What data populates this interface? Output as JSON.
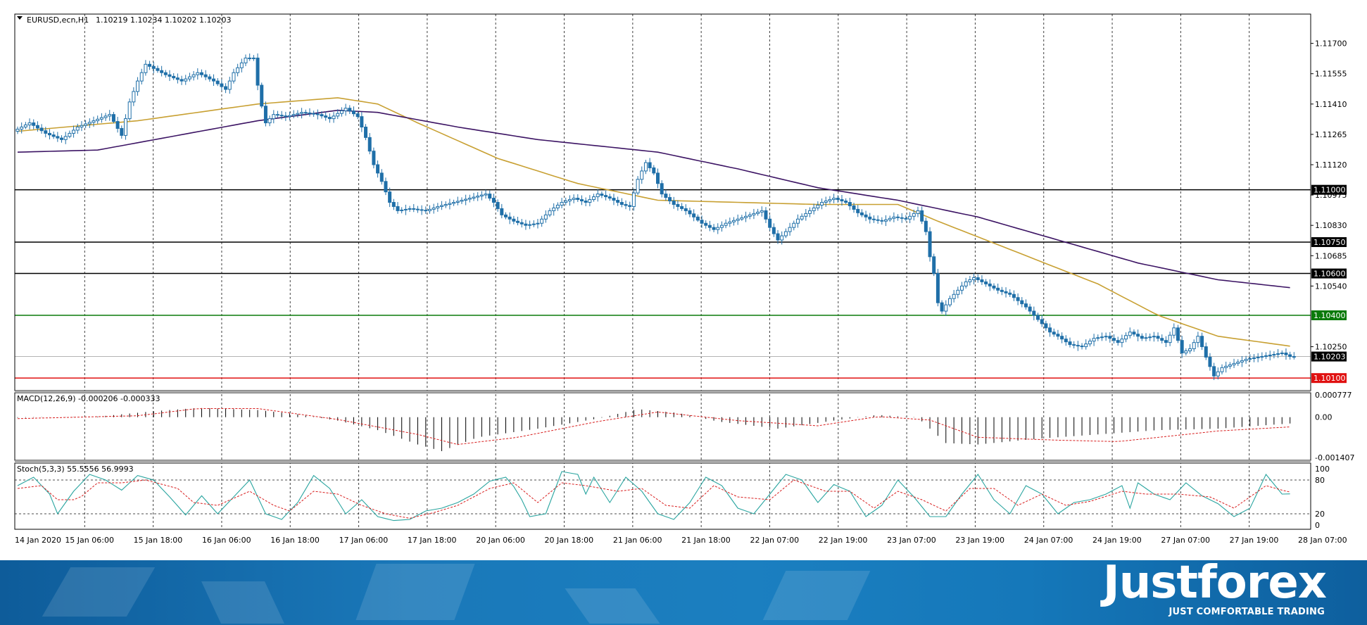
{
  "chart_data": {
    "type": "candlestick",
    "symbol_header": "EURUSD,ecn,H1",
    "ohlc_header": "1.10219 1.10234 1.10202 1.10203",
    "price_axis": {
      "range": [
        1.1004,
        1.1184
      ],
      "ticks": [
        "1.11700",
        "1.11555",
        "1.11410",
        "1.11265",
        "1.11120",
        "1.10975",
        "1.10830",
        "1.10685",
        "1.10540",
        "1.10250"
      ]
    },
    "time_labels": [
      "14 Jan 2020",
      "15 Jan 06:00",
      "15 Jan 18:00",
      "16 Jan 06:00",
      "16 Jan 18:00",
      "17 Jan 06:00",
      "17 Jan 18:00",
      "20 Jan 06:00",
      "20 Jan 18:00",
      "21 Jan 06:00",
      "21 Jan 18:00",
      "22 Jan 07:00",
      "22 Jan 19:00",
      "23 Jan 07:00",
      "23 Jan 19:00",
      "24 Jan 07:00",
      "24 Jan 19:00",
      "27 Jan 07:00",
      "27 Jan 19:00",
      "28 Jan 07:00"
    ],
    "levels": [
      {
        "price": 1.11,
        "label": "1.11000",
        "color": "#000000"
      },
      {
        "price": 1.1075,
        "label": "1.10750",
        "color": "#000000"
      },
      {
        "price": 1.106,
        "label": "1.10600",
        "color": "#000000"
      },
      {
        "price": 1.104,
        "label": "1.10400",
        "color": "#0a7a0a"
      },
      {
        "price": 1.10203,
        "label": "1.10203",
        "color": "#000000"
      },
      {
        "price": 1.101,
        "label": "1.10100",
        "color": "#e01010"
      }
    ],
    "price_path": [
      [
        0,
        1.1128
      ],
      [
        4,
        1.1132
      ],
      [
        8,
        1.1127
      ],
      [
        12,
        1.1124
      ],
      [
        16,
        1.113
      ],
      [
        20,
        1.1133
      ],
      [
        24,
        1.1136
      ],
      [
        27,
        1.1126
      ],
      [
        29,
        1.1142
      ],
      [
        31,
        1.1152
      ],
      [
        33,
        1.116
      ],
      [
        35,
        1.1158
      ],
      [
        38,
        1.1155
      ],
      [
        42,
        1.1152
      ],
      [
        46,
        1.1156
      ],
      [
        50,
        1.1152
      ],
      [
        53,
        1.1148
      ],
      [
        55,
        1.1156
      ],
      [
        58,
        1.1163
      ],
      [
        60,
        1.1163
      ],
      [
        61,
        1.115
      ],
      [
        62,
        1.114
      ],
      [
        63,
        1.1132
      ],
      [
        65,
        1.1136
      ],
      [
        68,
        1.1135
      ],
      [
        72,
        1.1137
      ],
      [
        76,
        1.1136
      ],
      [
        79,
        1.1134
      ],
      [
        83,
        1.1139
      ],
      [
        86,
        1.1135
      ],
      [
        88,
        1.1125
      ],
      [
        90,
        1.1112
      ],
      [
        92,
        1.1104
      ],
      [
        94,
        1.1094
      ],
      [
        96,
        1.109
      ],
      [
        99,
        1.1091
      ],
      [
        103,
        1.109
      ],
      [
        106,
        1.1092
      ],
      [
        110,
        1.1094
      ],
      [
        114,
        1.1096
      ],
      [
        118,
        1.1098
      ],
      [
        120,
        1.1094
      ],
      [
        122,
        1.1088
      ],
      [
        125,
        1.1085
      ],
      [
        128,
        1.1083
      ],
      [
        131,
        1.1084
      ],
      [
        134,
        1.109
      ],
      [
        137,
        1.1094
      ],
      [
        140,
        1.1096
      ],
      [
        143,
        1.1094
      ],
      [
        146,
        1.1098
      ],
      [
        149,
        1.1096
      ],
      [
        152,
        1.1093
      ],
      [
        154,
        1.1092
      ],
      [
        156,
        1.1105
      ],
      [
        158,
        1.1113
      ],
      [
        160,
        1.1108
      ],
      [
        162,
        1.1098
      ],
      [
        165,
        1.1093
      ],
      [
        168,
        1.109
      ],
      [
        170,
        1.1087
      ],
      [
        172,
        1.1084
      ],
      [
        175,
        1.1081
      ],
      [
        178,
        1.1084
      ],
      [
        181,
        1.1086
      ],
      [
        184,
        1.1088
      ],
      [
        187,
        1.109
      ],
      [
        189,
        1.1082
      ],
      [
        191,
        1.1076
      ],
      [
        193,
        1.108
      ],
      [
        196,
        1.1086
      ],
      [
        199,
        1.109
      ],
      [
        202,
        1.1094
      ],
      [
        205,
        1.1096
      ],
      [
        208,
        1.1094
      ],
      [
        211,
        1.1089
      ],
      [
        214,
        1.1086
      ],
      [
        217,
        1.1085
      ],
      [
        220,
        1.1087
      ],
      [
        223,
        1.1086
      ],
      [
        226,
        1.109
      ],
      [
        228,
        1.108
      ],
      [
        229,
        1.1068
      ],
      [
        230,
        1.106
      ],
      [
        231,
        1.1046
      ],
      [
        232,
        1.1042
      ],
      [
        234,
        1.1048
      ],
      [
        236,
        1.1052
      ],
      [
        238,
        1.1056
      ],
      [
        240,
        1.1058
      ],
      [
        243,
        1.1055
      ],
      [
        246,
        1.1052
      ],
      [
        249,
        1.105
      ],
      [
        251,
        1.1047
      ],
      [
        253,
        1.1044
      ],
      [
        255,
        1.104
      ],
      [
        257,
        1.1036
      ],
      [
        259,
        1.1032
      ],
      [
        261,
        1.103
      ],
      [
        264,
        1.1026
      ],
      [
        267,
        1.1025
      ],
      [
        270,
        1.1029
      ],
      [
        273,
        1.103
      ],
      [
        276,
        1.1027
      ],
      [
        279,
        1.1032
      ],
      [
        282,
        1.1029
      ],
      [
        285,
        1.103
      ],
      [
        288,
        1.1027
      ],
      [
        290,
        1.1034
      ],
      [
        292,
        1.1022
      ],
      [
        294,
        1.1024
      ],
      [
        296,
        1.103
      ],
      [
        298,
        1.102
      ],
      [
        300,
        1.1011
      ],
      [
        302,
        1.1015
      ],
      [
        305,
        1.1017
      ],
      [
        308,
        1.1019
      ],
      [
        311,
        1.102
      ],
      [
        314,
        1.1021
      ],
      [
        317,
        1.1022
      ],
      [
        319,
        1.10203
      ]
    ],
    "moving_averages": [
      {
        "color": "#c8a032",
        "points": [
          [
            0,
            1.1128
          ],
          [
            30,
            1.1133
          ],
          [
            60,
            1.1141
          ],
          [
            80,
            1.1144
          ],
          [
            90,
            1.1141
          ],
          [
            100,
            1.1132
          ],
          [
            120,
            1.1115
          ],
          [
            140,
            1.1103
          ],
          [
            160,
            1.1095
          ],
          [
            200,
            1.1093
          ],
          [
            220,
            1.1093
          ],
          [
            230,
            1.1085
          ],
          [
            250,
            1.107
          ],
          [
            270,
            1.1055
          ],
          [
            285,
            1.104
          ],
          [
            300,
            1.103
          ],
          [
            319,
            1.1025
          ]
        ]
      },
      {
        "color": "#3c1464",
        "points": [
          [
            0,
            1.1118
          ],
          [
            20,
            1.1119
          ],
          [
            40,
            1.1126
          ],
          [
            60,
            1.1133
          ],
          [
            80,
            1.1138
          ],
          [
            90,
            1.1137
          ],
          [
            110,
            1.113
          ],
          [
            130,
            1.1124
          ],
          [
            160,
            1.1118
          ],
          [
            180,
            1.111
          ],
          [
            200,
            1.1101
          ],
          [
            220,
            1.1095
          ],
          [
            240,
            1.1087
          ],
          [
            260,
            1.1076
          ],
          [
            280,
            1.1065
          ],
          [
            300,
            1.1057
          ],
          [
            319,
            1.1053
          ]
        ]
      }
    ],
    "macd": {
      "label": "MACD(12,26,9) -0.000206 -0.000333",
      "ticks": [
        "0.000777",
        "0.00",
        "-0.001407"
      ],
      "range": [
        -0.0015,
        0.00085
      ],
      "histogram": [
        [
          0,
          -2e-05
        ],
        [
          20,
          2e-05
        ],
        [
          35,
          0.00022
        ],
        [
          45,
          0.00032
        ],
        [
          60,
          0.00025
        ],
        [
          70,
          0.0001
        ],
        [
          80,
          -0.00012
        ],
        [
          90,
          -0.00045
        ],
        [
          100,
          -0.00095
        ],
        [
          106,
          -0.00118
        ],
        [
          115,
          -0.0007
        ],
        [
          130,
          -0.0004
        ],
        [
          145,
          -5e-05
        ],
        [
          155,
          0.00028
        ],
        [
          165,
          0.00015
        ],
        [
          175,
          -0.00015
        ],
        [
          190,
          -0.0004
        ],
        [
          205,
          -0.0001
        ],
        [
          215,
          8e-05
        ],
        [
          225,
          -2e-05
        ],
        [
          232,
          -0.0009
        ],
        [
          240,
          -0.00095
        ],
        [
          255,
          -0.00075
        ],
        [
          270,
          -0.0006
        ],
        [
          285,
          -0.00045
        ],
        [
          300,
          -0.0004
        ],
        [
          319,
          -0.00021
        ]
      ],
      "signal": [
        [
          0,
          -5e-05
        ],
        [
          30,
          5e-05
        ],
        [
          45,
          0.0003
        ],
        [
          60,
          0.0003
        ],
        [
          80,
          -8e-05
        ],
        [
          100,
          -0.0006
        ],
        [
          110,
          -0.00095
        ],
        [
          125,
          -0.0007
        ],
        [
          145,
          -0.00015
        ],
        [
          160,
          0.00018
        ],
        [
          180,
          -0.00012
        ],
        [
          200,
          -0.0003
        ],
        [
          215,
          2e-05
        ],
        [
          228,
          -0.0001
        ],
        [
          240,
          -0.0007
        ],
        [
          260,
          -0.0008
        ],
        [
          275,
          -0.00085
        ],
        [
          300,
          -0.00048
        ],
        [
          319,
          -0.00033
        ]
      ]
    },
    "stochastic": {
      "label": "Stoch(5,3,3) 55.5556 56.9993",
      "ticks": [
        "100",
        "80",
        "20",
        "0"
      ],
      "range": [
        0,
        100
      ],
      "main": [
        [
          0,
          70
        ],
        [
          4,
          85
        ],
        [
          8,
          55
        ],
        [
          10,
          20
        ],
        [
          14,
          60
        ],
        [
          18,
          90
        ],
        [
          22,
          80
        ],
        [
          26,
          62
        ],
        [
          30,
          88
        ],
        [
          34,
          80
        ],
        [
          38,
          50
        ],
        [
          42,
          18
        ],
        [
          46,
          52
        ],
        [
          50,
          20
        ],
        [
          54,
          50
        ],
        [
          58,
          80
        ],
        [
          62,
          20
        ],
        [
          66,
          10
        ],
        [
          70,
          40
        ],
        [
          74,
          88
        ],
        [
          78,
          65
        ],
        [
          82,
          20
        ],
        [
          86,
          45
        ],
        [
          90,
          15
        ],
        [
          94,
          8
        ],
        [
          98,
          10
        ],
        [
          102,
          25
        ],
        [
          106,
          30
        ],
        [
          110,
          40
        ],
        [
          114,
          55
        ],
        [
          118,
          78
        ],
        [
          122,
          85
        ],
        [
          125,
          60
        ],
        [
          128,
          15
        ],
        [
          132,
          20
        ],
        [
          136,
          95
        ],
        [
          140,
          90
        ],
        [
          142,
          55
        ],
        [
          144,
          85
        ],
        [
          148,
          40
        ],
        [
          152,
          85
        ],
        [
          156,
          60
        ],
        [
          160,
          20
        ],
        [
          164,
          10
        ],
        [
          168,
          40
        ],
        [
          172,
          85
        ],
        [
          176,
          70
        ],
        [
          180,
          30
        ],
        [
          184,
          20
        ],
        [
          188,
          55
        ],
        [
          192,
          90
        ],
        [
          196,
          80
        ],
        [
          200,
          40
        ],
        [
          204,
          72
        ],
        [
          208,
          60
        ],
        [
          212,
          15
        ],
        [
          216,
          35
        ],
        [
          220,
          80
        ],
        [
          224,
          50
        ],
        [
          228,
          15
        ],
        [
          232,
          15
        ],
        [
          236,
          55
        ],
        [
          240,
          90
        ],
        [
          244,
          45
        ],
        [
          248,
          20
        ],
        [
          252,
          70
        ],
        [
          256,
          55
        ],
        [
          260,
          20
        ],
        [
          264,
          40
        ],
        [
          268,
          45
        ],
        [
          272,
          55
        ],
        [
          276,
          70
        ],
        [
          278,
          30
        ],
        [
          280,
          75
        ],
        [
          284,
          55
        ],
        [
          288,
          45
        ],
        [
          292,
          75
        ],
        [
          296,
          52
        ],
        [
          300,
          38
        ],
        [
          304,
          15
        ],
        [
          308,
          30
        ],
        [
          312,
          90
        ],
        [
          316,
          55
        ],
        [
          319,
          55.56
        ]
      ],
      "signal": [
        [
          0,
          65
        ],
        [
          6,
          70
        ],
        [
          10,
          45
        ],
        [
          15,
          45
        ],
        [
          20,
          75
        ],
        [
          26,
          75
        ],
        [
          32,
          80
        ],
        [
          40,
          65
        ],
        [
          44,
          40
        ],
        [
          50,
          35
        ],
        [
          58,
          60
        ],
        [
          64,
          35
        ],
        [
          68,
          25
        ],
        [
          74,
          60
        ],
        [
          80,
          55
        ],
        [
          86,
          35
        ],
        [
          92,
          20
        ],
        [
          98,
          12
        ],
        [
          104,
          22
        ],
        [
          110,
          35
        ],
        [
          118,
          65
        ],
        [
          124,
          75
        ],
        [
          130,
          40
        ],
        [
          136,
          75
        ],
        [
          142,
          70
        ],
        [
          150,
          60
        ],
        [
          156,
          65
        ],
        [
          162,
          35
        ],
        [
          168,
          30
        ],
        [
          174,
          70
        ],
        [
          180,
          50
        ],
        [
          188,
          45
        ],
        [
          194,
          80
        ],
        [
          202,
          60
        ],
        [
          208,
          60
        ],
        [
          214,
          30
        ],
        [
          220,
          60
        ],
        [
          226,
          45
        ],
        [
          232,
          25
        ],
        [
          238,
          65
        ],
        [
          244,
          65
        ],
        [
          250,
          35
        ],
        [
          256,
          55
        ],
        [
          262,
          35
        ],
        [
          268,
          42
        ],
        [
          276,
          60
        ],
        [
          282,
          55
        ],
        [
          290,
          55
        ],
        [
          298,
          50
        ],
        [
          304,
          30
        ],
        [
          312,
          70
        ],
        [
          316,
          62
        ],
        [
          319,
          57.0
        ]
      ]
    }
  },
  "banner": {
    "logo": "Justforex",
    "tagline": "JUST COMFORTABLE TRADING"
  }
}
